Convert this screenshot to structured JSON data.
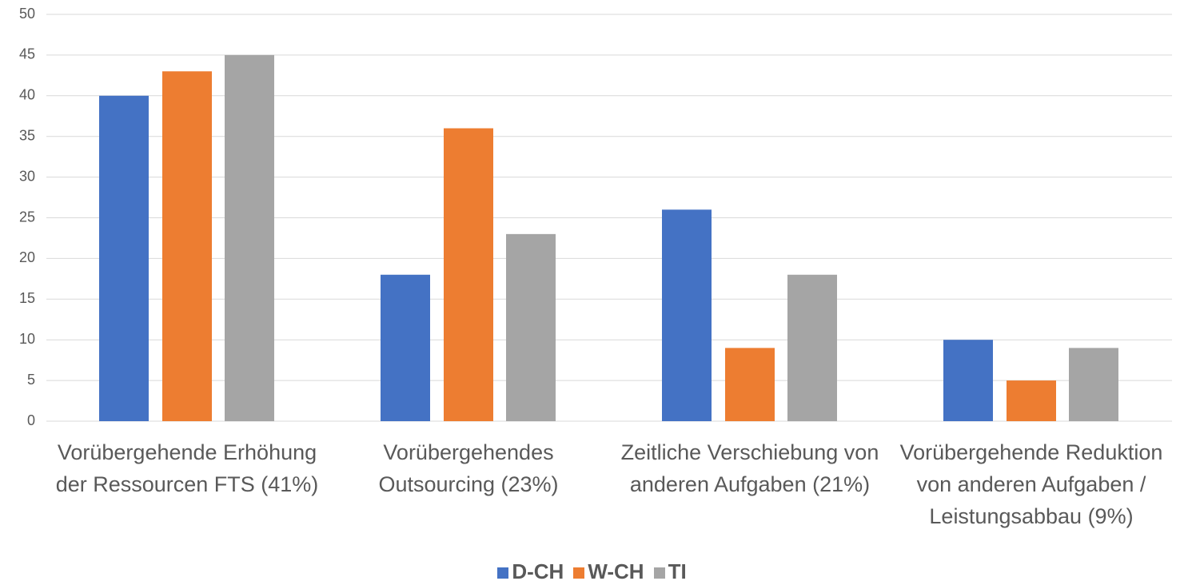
{
  "chart_data": {
    "type": "bar",
    "categories": [
      "Vorübergehende Erhöhung der Ressourcen FTS (41%)",
      "Vorübergehendes Outsourcing (23%)",
      "Zeitliche Verschiebung von anderen Aufgaben (21%)",
      "Vorübergehende Reduktion von anderen Aufgaben / Leistungsabbau (9%)"
    ],
    "series": [
      {
        "name": "D-CH",
        "color": "#4472c4",
        "values": [
          40,
          18,
          26,
          10
        ]
      },
      {
        "name": "W-CH",
        "color": "#ed7d31",
        "values": [
          43,
          36,
          9,
          5
        ]
      },
      {
        "name": "TI",
        "color": "#a5a5a5",
        "values": [
          45,
          23,
          18,
          9
        ]
      }
    ],
    "ylim": [
      0,
      50
    ],
    "yticks": [
      0,
      5,
      10,
      15,
      20,
      25,
      30,
      35,
      40,
      45,
      50
    ],
    "grid": true,
    "legend": "bottom"
  }
}
